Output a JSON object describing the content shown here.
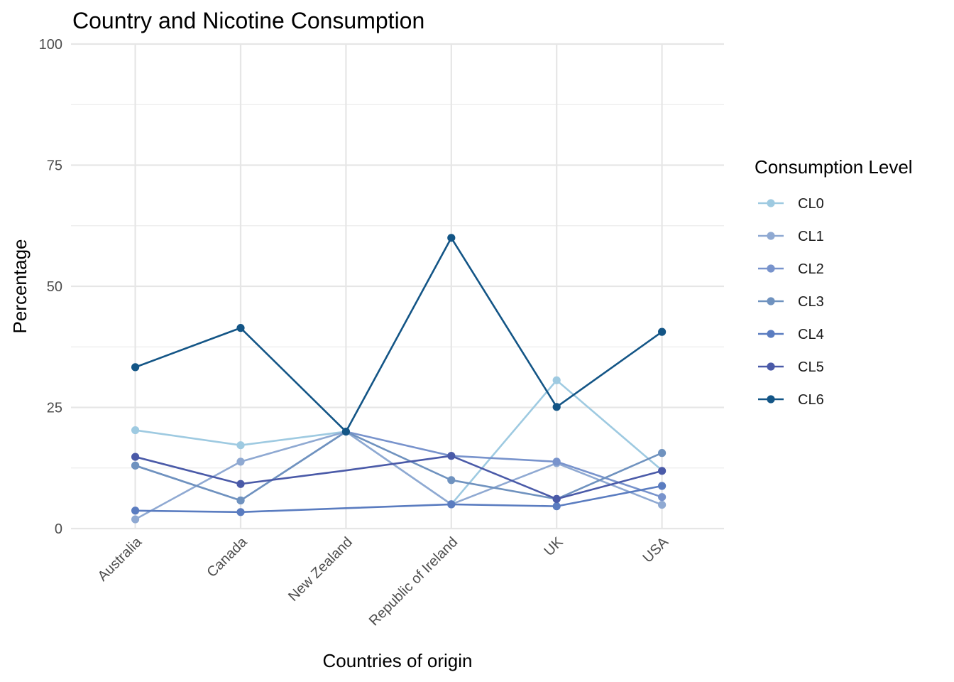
{
  "chart_data": {
    "type": "line",
    "title": "Country and Nicotine Consumption",
    "xlabel": "Countries of origin",
    "ylabel": "Percentage",
    "categories": [
      "Australia",
      "Canada",
      "New Zealand",
      "Republic of Ireland",
      "UK",
      "USA"
    ],
    "ylim": [
      0,
      100
    ],
    "yticks": [
      0,
      25,
      50,
      75,
      100
    ],
    "grid": true,
    "legend": {
      "title": "Consumption Level",
      "placement": "right"
    },
    "series": [
      {
        "name": "CL0",
        "color": "#9ecae1",
        "values": [
          20.3,
          17.2,
          20.0,
          5.0,
          30.6,
          12.0
        ]
      },
      {
        "name": "CL1",
        "color": "#8fa9d2",
        "values": [
          1.9,
          13.8,
          20.0,
          5.0,
          13.5,
          4.9
        ]
      },
      {
        "name": "CL2",
        "color": "#7893cc",
        "values": [
          13.0,
          5.8,
          20.0,
          15.0,
          13.8,
          6.5
        ]
      },
      {
        "name": "CL3",
        "color": "#6f92bf",
        "values": [
          13.0,
          5.8,
          20.0,
          10.0,
          6.1,
          15.6
        ]
      },
      {
        "name": "CL4",
        "color": "#5a7cc0",
        "values": [
          3.7,
          3.4,
          4.2,
          5.0,
          4.6,
          8.8
        ]
      },
      {
        "name": "CL5",
        "color": "#4a5aa8",
        "values": [
          14.8,
          9.2,
          12.0,
          15.0,
          6.1,
          11.9
        ]
      },
      {
        "name": "CL6",
        "color": "#135586",
        "values": [
          33.3,
          41.4,
          20.0,
          60.0,
          25.1,
          40.6
        ]
      }
    ],
    "point_markers": [
      [
        true,
        true,
        false,
        true,
        true,
        false
      ],
      [
        true,
        true,
        false,
        true,
        true,
        true
      ],
      [
        true,
        true,
        false,
        true,
        true,
        true
      ],
      [
        true,
        true,
        false,
        true,
        true,
        true
      ],
      [
        true,
        true,
        false,
        true,
        true,
        true
      ],
      [
        true,
        true,
        false,
        true,
        true,
        true
      ],
      [
        true,
        true,
        true,
        true,
        true,
        true
      ]
    ]
  }
}
